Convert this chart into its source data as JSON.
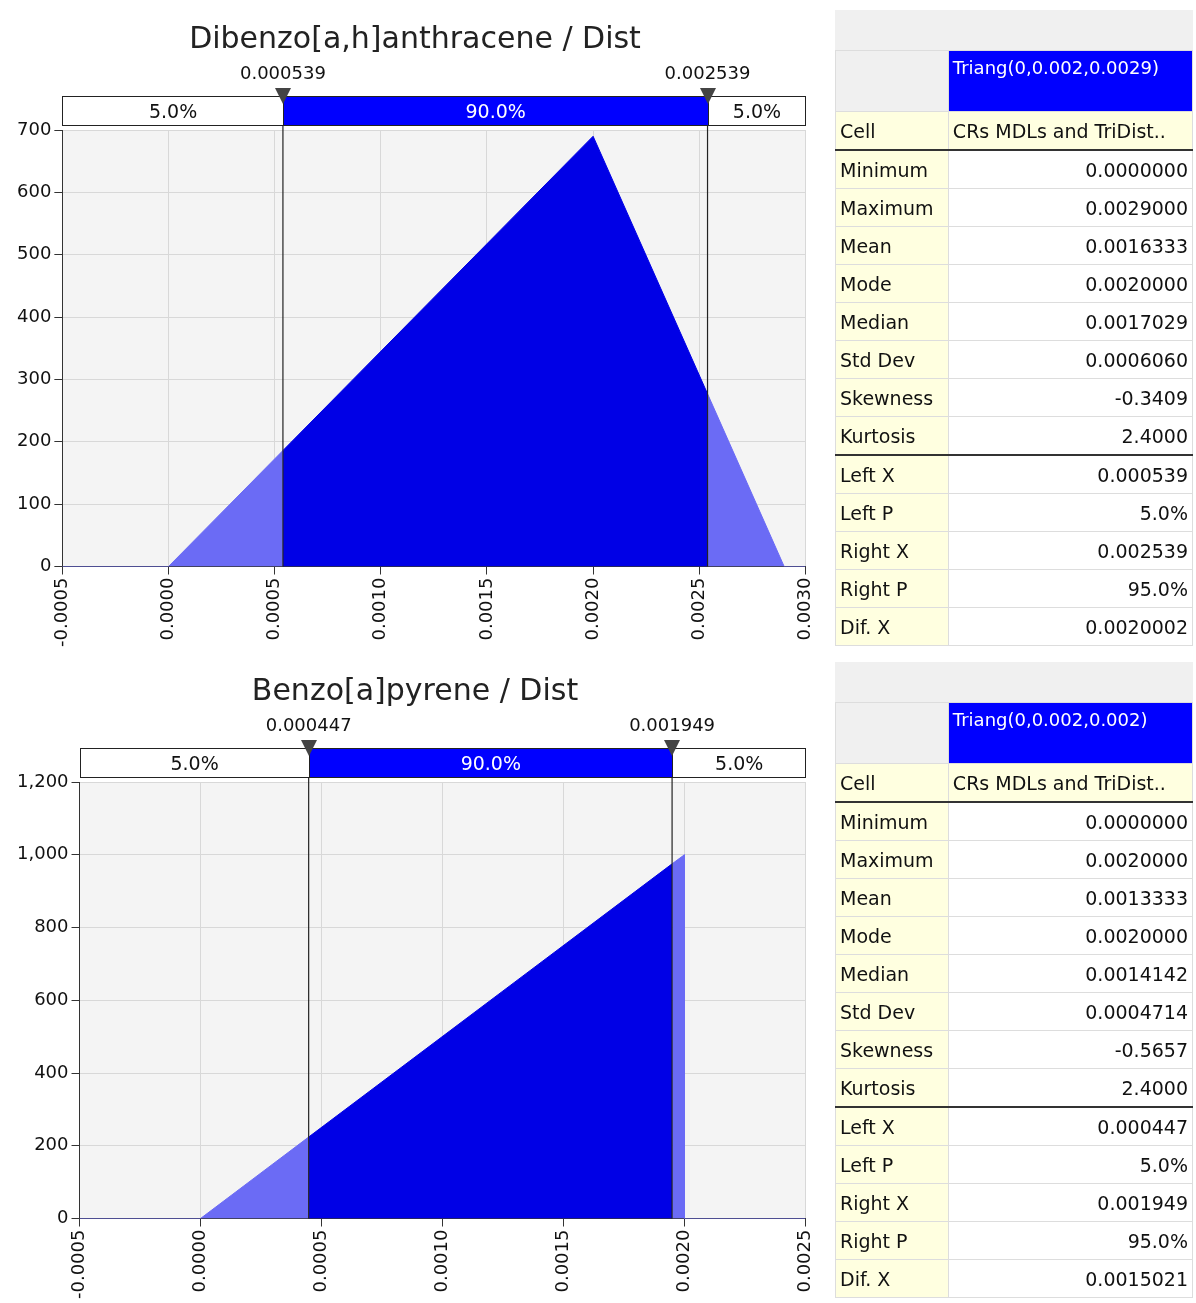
{
  "chart_data": [
    {
      "type": "area",
      "title": "Dibenzo[a,h]anthracene / Dist",
      "series": [
        {
          "color": "#6b6bf5",
          "x": [
            -0.0005,
            0,
            0.000539
          ],
          "values": [
            0,
            0,
            186
          ]
        },
        {
          "color": "#0000e6",
          "x": [
            0.000539,
            0.002,
            0.002539
          ],
          "values": [
            186,
            690,
            277
          ]
        },
        {
          "color": "#6b6bf5",
          "x": [
            0.002539,
            0.0029,
            0.003
          ],
          "values": [
            277,
            0,
            0
          ]
        }
      ],
      "xlim": [
        -0.0005,
        0.003
      ],
      "xticks": [
        {
          "value": -0.0005,
          "label": "-0.0005"
        },
        {
          "value": 0,
          "label": "0.0000"
        },
        {
          "value": 0.0005,
          "label": "0.0005"
        },
        {
          "value": 0.001,
          "label": "0.0010"
        },
        {
          "value": 0.0015,
          "label": "0.0015"
        },
        {
          "value": 0.002,
          "label": "0.0020"
        },
        {
          "value": 0.0025,
          "label": "0.0025"
        },
        {
          "value": 0.003,
          "label": "0.0030"
        }
      ],
      "ylim": [
        0,
        700
      ],
      "yticks": [
        0,
        100,
        200,
        300,
        400,
        500,
        600,
        700
      ],
      "grid": true,
      "ref_lines": [
        {
          "axis": "x",
          "value": 0.000539,
          "label": "0.000539"
        },
        {
          "axis": "x",
          "value": 0.002539,
          "label": "0.002539"
        }
      ],
      "annotations": [
        "5.0%",
        "90.0%",
        "5.0%"
      ]
    },
    {
      "type": "other",
      "title": "Triang(0,0.002,0.0029)",
      "annotations": [
        "Cell",
        "CRs MDLs and TriDist..",
        "Minimum",
        "0.0000000",
        "Maximum",
        "0.0029000",
        "Mean",
        "0.0016333",
        "Mode",
        "0.0020000",
        "Median",
        "0.0017029",
        "Std Dev",
        "0.0006060",
        "Skewness",
        "-0.3409",
        "Kurtosis",
        "2.4000",
        "Left X",
        "0.000539",
        "Left P",
        "5.0%",
        "Right X",
        "0.002539",
        "Right P",
        "95.0%",
        "Dif. X",
        "0.0020002"
      ]
    },
    {
      "type": "area",
      "title": "Benzo[a]pyrene / Dist",
      "series": [
        {
          "color": "#6b6bf5",
          "x": [
            -0.0005,
            0,
            0.000447
          ],
          "values": [
            0,
            0,
            224
          ]
        },
        {
          "color": "#0000e6",
          "x": [
            0.000447,
            0.001949
          ],
          "values": [
            224,
            975
          ]
        },
        {
          "color": "#6b6bf5",
          "x": [
            0.001949,
            0.002,
            0.002,
            0.0025
          ],
          "values": [
            975,
            1000,
            0,
            0
          ]
        }
      ],
      "xlim": [
        -0.0005,
        0.0025
      ],
      "xticks": [
        {
          "value": -0.0005,
          "label": "-0.0005"
        },
        {
          "value": 0,
          "label": "0.0000"
        },
        {
          "value": 0.0005,
          "label": "0.0005"
        },
        {
          "value": 0.001,
          "label": "0.0010"
        },
        {
          "value": 0.0015,
          "label": "0.0015"
        },
        {
          "value": 0.002,
          "label": "0.0020"
        },
        {
          "value": 0.0025,
          "label": "0.0025"
        }
      ],
      "ylim": [
        0,
        1200
      ],
      "yticks": [
        0,
        200,
        400,
        600,
        800,
        {
          "value": 1000,
          "label": "1,000"
        },
        {
          "value": 1200,
          "label": "1,200"
        }
      ],
      "grid": true,
      "ref_lines": [
        {
          "axis": "x",
          "value": 0.000447,
          "label": "0.000447"
        },
        {
          "axis": "x",
          "value": 0.001949,
          "label": "0.001949"
        }
      ],
      "annotations": [
        "5.0%",
        "90.0%",
        "5.0%"
      ]
    },
    {
      "type": "other",
      "title": "Triang(0,0.002,0.002)",
      "annotations": [
        "Cell",
        "CRs MDLs and TriDist..",
        "Minimum",
        "0.0000000",
        "Maximum",
        "0.0020000",
        "Mean",
        "0.0013333",
        "Mode",
        "0.0020000",
        "Median",
        "0.0014142",
        "Std Dev",
        "0.0004714",
        "Skewness",
        "-0.5657",
        "Kurtosis",
        "2.4000",
        "Left X",
        "0.000447",
        "Left P",
        "5.0%",
        "Right X",
        "0.001949",
        "Right P",
        "95.0%",
        "Dif. X",
        "0.0015021"
      ]
    }
  ]
}
